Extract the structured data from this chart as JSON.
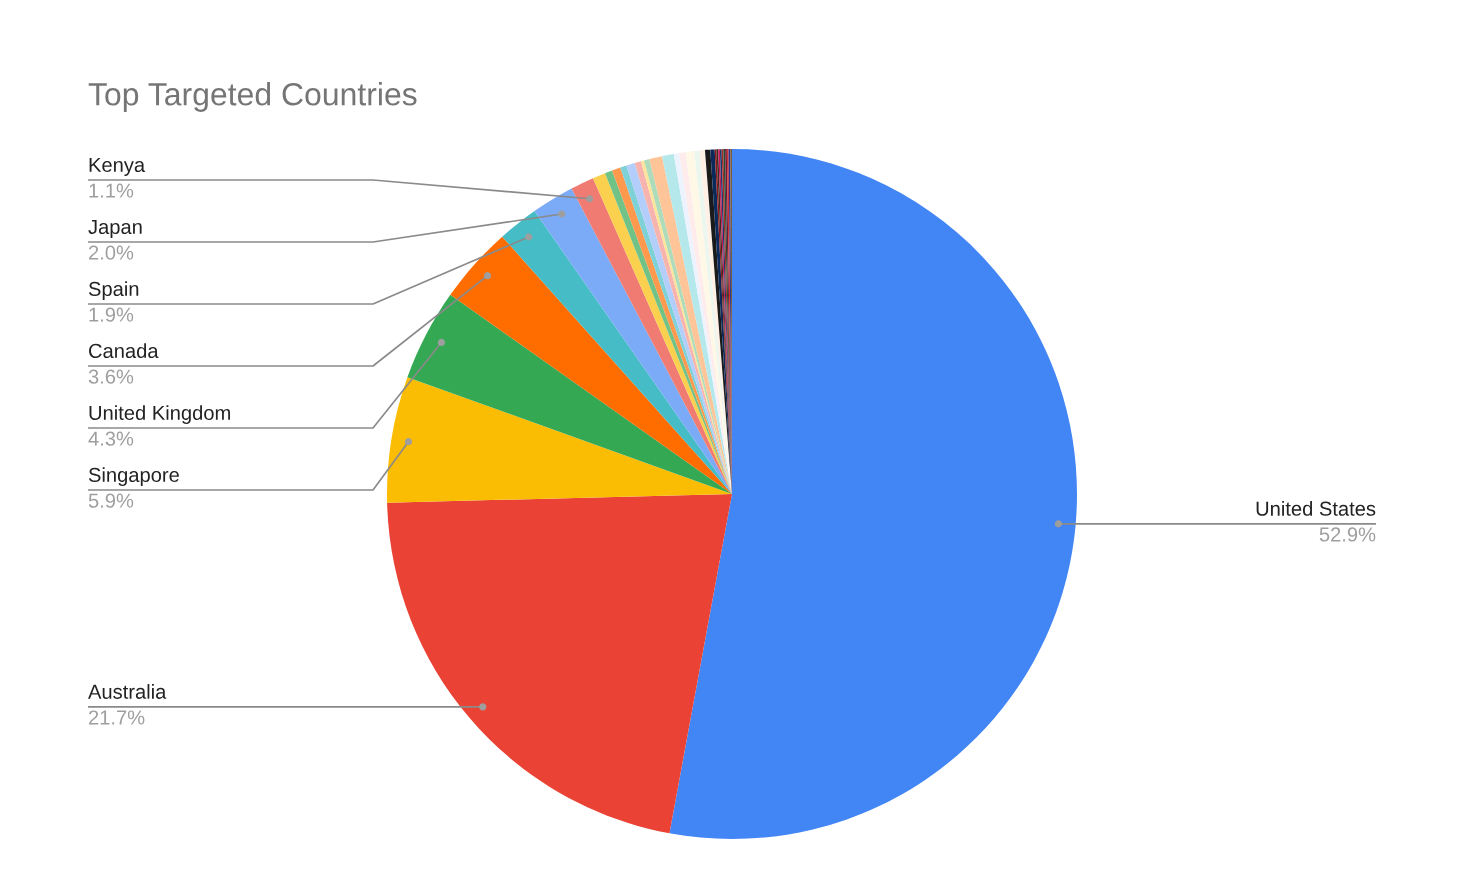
{
  "chart_data": {
    "type": "pie",
    "title": "Top Targeted Countries",
    "categories": [
      "United States",
      "Australia",
      "Singapore",
      "United Kingdom",
      "Canada",
      "Spain",
      "Japan",
      "Kenya",
      null,
      null,
      null,
      null,
      null,
      null,
      null,
      null,
      null,
      null,
      null,
      null,
      null,
      null,
      null,
      null,
      null,
      null,
      null,
      null,
      null,
      null,
      null,
      null,
      null,
      null,
      null
    ],
    "values": [
      52.9,
      21.7,
      5.9,
      4.3,
      3.6,
      1.9,
      2.0,
      1.1,
      0.6,
      0.35,
      0.4,
      0.3,
      0.4,
      0.3,
      0.15,
      0.25,
      0.6,
      0.55,
      0.25,
      0.3,
      0.4,
      0.25,
      0.25,
      0.25,
      0.2,
      0.08,
      0.08,
      0.08,
      0.08,
      0.08,
      0.08,
      0.08,
      0.08,
      0.08,
      0.08
    ],
    "colors": [
      "#4285f4",
      "#ea4335",
      "#fbbc04",
      "#34a853",
      "#ff6d01",
      "#46bdc6",
      "#7baaf7",
      "#f07b72",
      "#fcd04f",
      "#71c287",
      "#ff994d",
      "#7ed1d7",
      "#b3cefb",
      "#f7b4ae",
      "#fde49b",
      "#aedcba",
      "#ffc599",
      "#b5e8eb",
      "#ecf3fe",
      "#fdeceb",
      "#fff8e6",
      "#ebf6ee",
      "#fff0e6",
      "#1a1a1a",
      "#0b2a5b",
      "#8b1a1a",
      "#3d2b1f",
      "#c2185b",
      "#1b3a6b",
      "#a52a2a",
      "#2e4a2e",
      "#6b1b3a",
      "#d32f2f",
      "#283593",
      "#7b5e3b"
    ],
    "value_labels": [
      "52.9%",
      "21.7%",
      "5.9%",
      "4.3%",
      "3.6%",
      "1.9%",
      "2.0%",
      "1.1%",
      null,
      null,
      null,
      null,
      null,
      null,
      null,
      null,
      null,
      null,
      null,
      null,
      null,
      null,
      null,
      null,
      null,
      null,
      null,
      null,
      null,
      null,
      null,
      null,
      null,
      null,
      null
    ]
  }
}
